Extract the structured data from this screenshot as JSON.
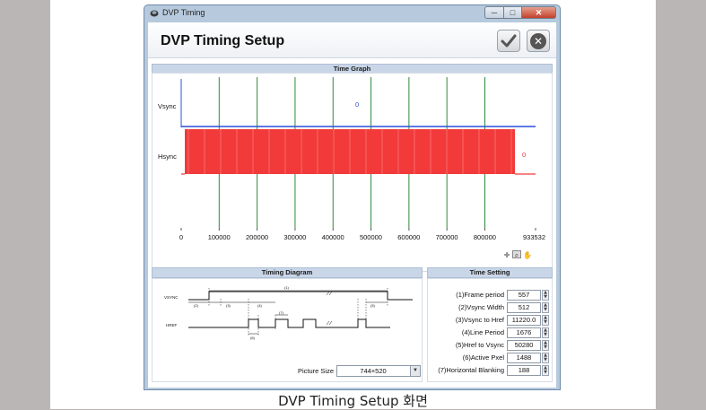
{
  "window": {
    "title": "DVP Timing",
    "min_label": "─",
    "max_label": "□",
    "close_label": "✕"
  },
  "header": {
    "title": "DVP Timing Setup",
    "ok_icon": "checkmark-icon",
    "cancel_icon": "close-icon"
  },
  "time_graph": {
    "title": "Time Graph",
    "signals": [
      {
        "name": "Vsync",
        "value": "0",
        "color": "#2c4fd6"
      },
      {
        "name": "Hsync",
        "value": "0",
        "color": "#f23a3a"
      }
    ],
    "x_ticks": [
      "0",
      "100000",
      "200000",
      "300000",
      "400000",
      "500000",
      "600000",
      "700000",
      "800000",
      "933532"
    ],
    "marker_color": "#2e8b3a"
  },
  "chart_data": {
    "type": "line",
    "title": "Time Graph",
    "xlim": [
      0,
      933532
    ],
    "x_ticks": [
      0,
      100000,
      200000,
      300000,
      400000,
      500000,
      600000,
      700000,
      800000,
      933532
    ],
    "series": [
      {
        "name": "Vsync",
        "value_label": "0"
      },
      {
        "name": "Hsync",
        "value_label": "0"
      }
    ]
  },
  "timing_diagram": {
    "title": "Timing Diagram",
    "vsync_label": "VSYNC",
    "href_label": "HREF",
    "labels": [
      "(1)",
      "(2)",
      "(3)",
      "(4)",
      "(5)",
      "(6)",
      "(7)"
    ],
    "picture_size_label": "Picture Size :",
    "picture_size_value": "744×520"
  },
  "time_setting": {
    "title": "Time Setting",
    "rows": [
      {
        "label": "(1)Frame period",
        "value": "557"
      },
      {
        "label": "(2)Vsync Width",
        "value": "512"
      },
      {
        "label": "(3)Vsync to Href",
        "value": "11220.0"
      },
      {
        "label": "(4)Line Period",
        "value": "1676"
      },
      {
        "label": "(5)Href to Vsync",
        "value": "50280"
      },
      {
        "label": "(6)Active Pxel",
        "value": "1488"
      },
      {
        "label": "(7)Horizontal Blanking",
        "value": "188"
      }
    ]
  },
  "caption": "DVP Timing Setup 화면"
}
